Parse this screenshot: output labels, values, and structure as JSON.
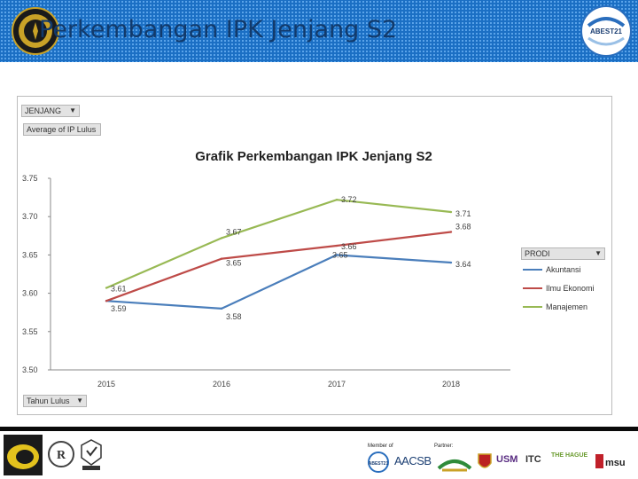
{
  "slide": {
    "title": "Perkembangan IPK Jenjang S2",
    "logo_right_text": "ABEST21"
  },
  "pivot": {
    "filter_label": "JENJANG",
    "value_label": "Average of IP Lulus",
    "axis_label": "Tahun Lulus",
    "legend_label": "PRODI"
  },
  "chart_data": {
    "type": "line",
    "title": "Grafik Perkembangan IPK Jenjang S2",
    "categories": [
      "2015",
      "2016",
      "2017",
      "2018"
    ],
    "ylim": [
      3.5,
      3.75
    ],
    "yticks": [
      "3.50",
      "3.55",
      "3.60",
      "3.65",
      "3.70",
      "3.75"
    ],
    "grid": false,
    "legend_position": "right",
    "series": [
      {
        "name": "Akuntansi",
        "color": "#4a7ebb",
        "values": [
          3.59,
          3.58,
          3.65,
          3.64
        ],
        "labels": [
          "3.59",
          "3.58",
          "3.65",
          "3.64"
        ]
      },
      {
        "name": "Ilmu Ekonomi",
        "color": "#be4b48",
        "values": [
          3.59,
          3.645,
          3.662,
          3.68
        ],
        "labels": [
          "",
          "3.65",
          "3.66",
          "3.68"
        ]
      },
      {
        "name": "Manajemen",
        "color": "#98b954",
        "values": [
          3.607,
          3.672,
          3.722,
          3.706
        ],
        "labels": [
          "3.61",
          "3.67",
          "3.72",
          "3.71"
        ]
      }
    ]
  },
  "footer": {
    "member_of_label": "Member of",
    "partner_label": "Partner:",
    "aacsb_text": "AACSB",
    "abest_text": "ABEST21",
    "hague_text": "THE HAGUE",
    "msu_text": "msu",
    "usm_text": "USM",
    "itc_text": "ITC"
  }
}
